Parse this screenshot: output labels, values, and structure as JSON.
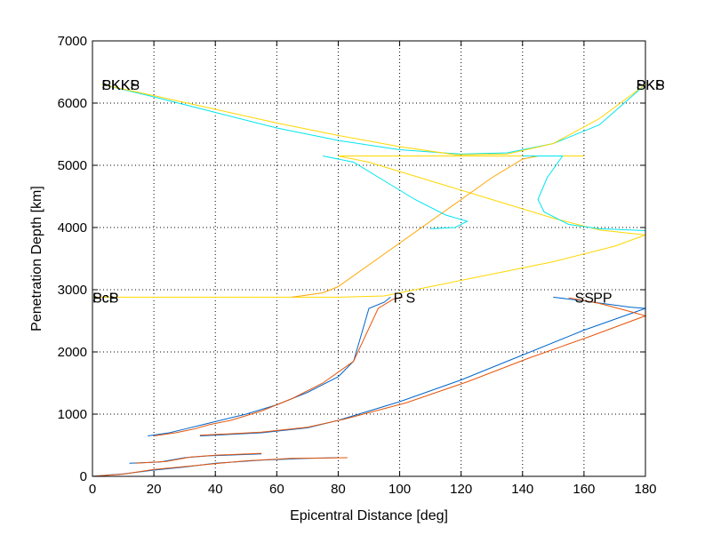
{
  "chart_data": {
    "type": "line",
    "title": "",
    "xlabel": "Epicentral Distance [deg]",
    "ylabel": "Penetration Depth [km]",
    "xlim": [
      0,
      180
    ],
    "ylim": [
      0,
      7000
    ],
    "xticks": [
      0,
      20,
      40,
      60,
      80,
      100,
      120,
      140,
      160,
      180
    ],
    "yticks": [
      0,
      1000,
      2000,
      3000,
      4000,
      5000,
      6000,
      7000
    ],
    "grid": true,
    "legend": "none",
    "series": [
      {
        "color": "#0066cc",
        "points": [
          [
            0,
            0
          ],
          [
            10,
            40
          ],
          [
            20,
            100
          ],
          [
            30,
            150
          ],
          [
            40,
            210
          ],
          [
            55,
            260
          ],
          [
            70,
            290
          ],
          [
            80,
            300
          ]
        ]
      },
      {
        "color": "#e8550a",
        "points": [
          [
            0,
            0
          ],
          [
            10,
            35
          ],
          [
            20,
            110
          ],
          [
            35,
            180
          ],
          [
            50,
            250
          ],
          [
            65,
            290
          ],
          [
            83,
            300
          ]
        ]
      },
      {
        "color": "#0066cc",
        "points": [
          [
            12,
            210
          ],
          [
            22,
            230
          ],
          [
            30,
            300
          ],
          [
            38,
            330
          ],
          [
            55,
            360
          ]
        ]
      },
      {
        "color": "#e8550a",
        "points": [
          [
            14,
            210
          ],
          [
            24,
            240
          ],
          [
            32,
            310
          ],
          [
            40,
            340
          ],
          [
            55,
            370
          ]
        ]
      },
      {
        "color": "#0066cc",
        "points": [
          [
            18,
            650
          ],
          [
            25,
            700
          ],
          [
            30,
            760
          ],
          [
            35,
            820
          ],
          [
            40,
            880
          ],
          [
            50,
            1000
          ],
          [
            60,
            1150
          ],
          [
            70,
            1350
          ],
          [
            80,
            1600
          ],
          [
            85,
            1850
          ],
          [
            90,
            2700
          ],
          [
            95,
            2800
          ],
          [
            97,
            2880
          ]
        ]
      },
      {
        "color": "#e8550a",
        "points": [
          [
            20,
            650
          ],
          [
            27,
            700
          ],
          [
            33,
            760
          ],
          [
            38,
            830
          ],
          [
            45,
            900
          ],
          [
            55,
            1050
          ],
          [
            65,
            1250
          ],
          [
            75,
            1500
          ],
          [
            85,
            1850
          ],
          [
            93,
            2700
          ],
          [
            98,
            2850
          ],
          [
            101,
            2880
          ]
        ]
      },
      {
        "color": "#0066cc",
        "points": [
          [
            35,
            650
          ],
          [
            55,
            700
          ],
          [
            70,
            780
          ],
          [
            80,
            900
          ],
          [
            100,
            1200
          ],
          [
            120,
            1550
          ],
          [
            140,
            1950
          ],
          [
            160,
            2350
          ],
          [
            180,
            2700
          ],
          [
            175,
            2720
          ],
          [
            160,
            2820
          ],
          [
            150,
            2880
          ]
        ]
      },
      {
        "color": "#e8550a",
        "points": [
          [
            35,
            660
          ],
          [
            55,
            710
          ],
          [
            70,
            790
          ],
          [
            82,
            920
          ],
          [
            102,
            1180
          ],
          [
            122,
            1520
          ],
          [
            142,
            1900
          ],
          [
            162,
            2250
          ],
          [
            180,
            2580
          ],
          [
            175,
            2650
          ],
          [
            165,
            2780
          ],
          [
            155,
            2870
          ]
        ]
      },
      {
        "color": "#ffd700",
        "points": [
          [
            0,
            2880
          ],
          [
            20,
            2880
          ],
          [
            40,
            2880
          ],
          [
            60,
            2880
          ],
          [
            80,
            2880
          ],
          [
            95,
            2900
          ],
          [
            100,
            2950
          ],
          [
            110,
            3050
          ],
          [
            130,
            3250
          ],
          [
            150,
            3450
          ],
          [
            170,
            3700
          ],
          [
            180,
            3880
          ],
          [
            165,
            3960
          ],
          [
            150,
            4150
          ],
          [
            130,
            4450
          ],
          [
            110,
            4750
          ],
          [
            90,
            5050
          ],
          [
            80,
            5150
          ],
          [
            100,
            5150
          ],
          [
            120,
            5150
          ],
          [
            140,
            5150
          ],
          [
            160,
            5150
          ]
        ]
      },
      {
        "color": "#ffa500",
        "points": [
          [
            65,
            2880
          ],
          [
            75,
            2950
          ],
          [
            80,
            3050
          ],
          [
            90,
            3400
          ],
          [
            100,
            3750
          ],
          [
            110,
            4100
          ],
          [
            120,
            4450
          ],
          [
            130,
            4800
          ],
          [
            140,
            5100
          ],
          [
            145,
            5150
          ]
        ]
      },
      {
        "color": "#00e5ee",
        "points": [
          [
            75,
            5150
          ],
          [
            85,
            5050
          ],
          [
            95,
            4750
          ],
          [
            105,
            4450
          ],
          [
            115,
            4200
          ],
          [
            122,
            4100
          ],
          [
            118,
            4000
          ],
          [
            110,
            3980
          ]
        ]
      },
      {
        "color": "#00e5ee",
        "points": [
          [
            140,
            5150
          ],
          [
            150,
            5150
          ],
          [
            153,
            5150
          ],
          [
            148,
            4800
          ],
          [
            145,
            4450
          ],
          [
            147,
            4250
          ],
          [
            155,
            4050
          ],
          [
            165,
            3980
          ],
          [
            180,
            3950
          ]
        ]
      },
      {
        "color": "#00e5ee",
        "points": [
          [
            3,
            6300
          ],
          [
            20,
            6100
          ],
          [
            40,
            5850
          ],
          [
            60,
            5600
          ],
          [
            80,
            5400
          ],
          [
            100,
            5250
          ],
          [
            120,
            5180
          ],
          [
            135,
            5200
          ],
          [
            150,
            5350
          ],
          [
            165,
            5650
          ],
          [
            180,
            6300
          ]
        ]
      },
      {
        "color": "#ffd700",
        "points": [
          [
            3,
            6300
          ],
          [
            20,
            6120
          ],
          [
            40,
            5900
          ],
          [
            60,
            5680
          ],
          [
            80,
            5480
          ],
          [
            100,
            5300
          ],
          [
            118,
            5170
          ],
          [
            135,
            5180
          ],
          [
            150,
            5350
          ],
          [
            165,
            5750
          ],
          [
            180,
            6300
          ]
        ]
      }
    ],
    "annotations": [
      {
        "text": "SKKS",
        "x": 3,
        "y": 6300
      },
      {
        "text": "PKKP",
        "x": 3,
        "y": 6300
      },
      {
        "text": "SKS",
        "x": 177,
        "y": 6300
      },
      {
        "text": "PKP",
        "x": 177,
        "y": 6300
      },
      {
        "text": "ScS",
        "x": 0,
        "y": 2880
      },
      {
        "text": "PcP",
        "x": 0,
        "y": 2880
      },
      {
        "text": "P",
        "x": 98,
        "y": 2880
      },
      {
        "text": "S",
        "x": 102,
        "y": 2880
      },
      {
        "text": "SS",
        "x": 157,
        "y": 2880
      },
      {
        "text": "PP",
        "x": 163,
        "y": 2880
      }
    ]
  }
}
